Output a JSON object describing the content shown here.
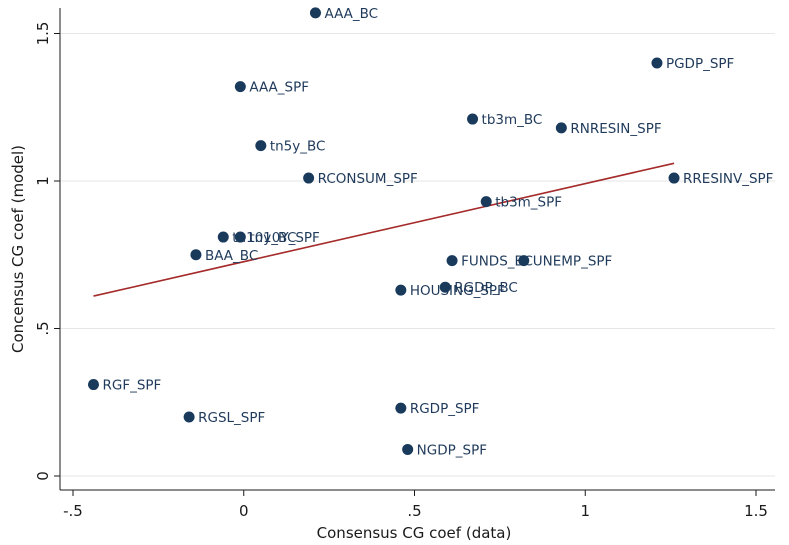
{
  "chart_data": {
    "type": "scatter",
    "xlabel": "Consensus CG coef (data)",
    "ylabel": "Concensus CG coef (model)",
    "xlim": [
      -0.5,
      1.5
    ],
    "ylim": [
      0,
      1.6
    ],
    "x_ticks": [
      -0.5,
      0,
      0.5,
      1,
      1.5
    ],
    "x_tick_labels": [
      "-.5",
      "0",
      ".5",
      "1",
      "1.5"
    ],
    "y_ticks": [
      0,
      0.5,
      1,
      1.5
    ],
    "y_tick_labels": [
      "0",
      ".5",
      "1",
      "1.5"
    ],
    "grid": "horizontal",
    "legend": "none",
    "points": [
      {
        "label": "AAA_BC",
        "x": 0.21,
        "y": 1.57
      },
      {
        "label": "AAA_SPF",
        "x": -0.01,
        "y": 1.32
      },
      {
        "label": "PGDP_SPF",
        "x": 1.21,
        "y": 1.4
      },
      {
        "label": "tb3m_BC",
        "x": 0.67,
        "y": 1.21
      },
      {
        "label": "RNRESIN_SPF",
        "x": 0.93,
        "y": 1.18
      },
      {
        "label": "tn5y_BC",
        "x": 0.05,
        "y": 1.12
      },
      {
        "label": "RCONSUM_SPF",
        "x": 0.19,
        "y": 1.01
      },
      {
        "label": "RRESINV_SPF",
        "x": 1.26,
        "y": 1.01
      },
      {
        "label": "tb3m_SPF",
        "x": 0.71,
        "y": 0.93
      },
      {
        "label": "tn10y_BC",
        "x": -0.06,
        "y": 0.81
      },
      {
        "label": "tn10Y_SPF",
        "x": -0.01,
        "y": 0.81
      },
      {
        "label": "BAA_BC",
        "x": -0.14,
        "y": 0.75
      },
      {
        "label": "FUNDS_BC",
        "x": 0.61,
        "y": 0.73
      },
      {
        "label": "UNEMP_SPF",
        "x": 0.82,
        "y": 0.73
      },
      {
        "label": "HOUSING_SPF",
        "x": 0.46,
        "y": 0.63
      },
      {
        "label": "RGDP_BC",
        "x": 0.59,
        "y": 0.64
      },
      {
        "label": "RGF_SPF",
        "x": -0.44,
        "y": 0.31
      },
      {
        "label": "RGSL_SPF",
        "x": -0.16,
        "y": 0.2
      },
      {
        "label": "RGDP_SPF",
        "x": 0.46,
        "y": 0.23
      },
      {
        "label": "NGDP_SPF",
        "x": 0.48,
        "y": 0.09
      }
    ],
    "fit_line": {
      "x": [
        -0.44,
        1.26
      ],
      "y": [
        0.61,
        1.06
      ],
      "color": "#a52a2a"
    },
    "marker_color": "#1a3a5c",
    "label_color": "#1f3a5a"
  }
}
